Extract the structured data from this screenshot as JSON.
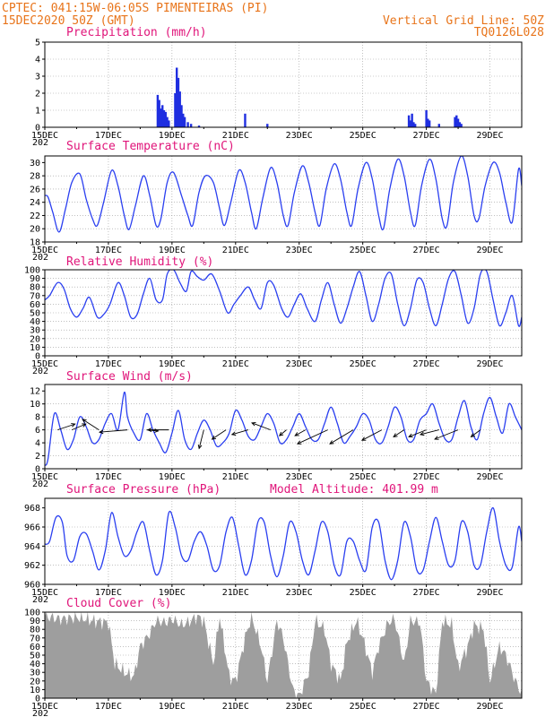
{
  "header": {
    "left_line1": "CPTEC:  041:15W-06:05S  PIMENTEIRAS (PI)",
    "left_line2": "15DEC2020 50Z (GMT)",
    "right_line1": "Vertical Grid Line: 50Z",
    "right_line2": "TQ0126L028"
  },
  "colors": {
    "header": "#e8741a",
    "title": "#e0157a",
    "series": "#2a3ff0",
    "bars": "#1f2ee0",
    "cloud": "#9e9e9e",
    "wind_vector": "#000000"
  },
  "x_axis": {
    "labels": [
      "15DEC",
      "17DEC",
      "19DEC",
      "21DEC",
      "23DEC",
      "25DEC",
      "27DEC",
      "29DEC"
    ],
    "tick_days": [
      0,
      2,
      4,
      6,
      8,
      10,
      12,
      14
    ],
    "start_fragment": "202",
    "range_days": [
      0,
      15
    ]
  },
  "chart_data": [
    {
      "type": "bar",
      "title": "Precipitation (mm/h)",
      "ylim": [
        0,
        5
      ],
      "yticks": [
        0,
        1,
        2,
        3,
        4,
        5
      ],
      "series": [
        {
          "x_days": [
            3.55,
            3.6,
            3.65,
            3.7,
            3.75,
            3.8,
            3.85,
            3.9,
            4.1,
            4.15,
            4.2,
            4.25,
            4.3,
            4.35,
            4.4,
            4.5,
            4.6,
            4.85,
            6.3,
            7.0,
            11.45,
            11.5,
            11.55,
            11.6,
            11.65,
            12.0,
            12.05,
            12.1,
            12.4,
            12.9,
            12.95,
            13.0,
            13.05,
            13.1
          ],
          "values": [
            1.9,
            1.6,
            1.1,
            1.3,
            1.0,
            0.9,
            0.6,
            0.4,
            2.0,
            3.5,
            2.9,
            2.1,
            1.3,
            0.8,
            0.6,
            0.3,
            0.2,
            0.1,
            0.8,
            0.2,
            0.7,
            0.4,
            0.8,
            0.3,
            0.2,
            1.0,
            0.5,
            0.4,
            0.2,
            0.6,
            0.7,
            0.5,
            0.3,
            0.2
          ]
        }
      ]
    },
    {
      "type": "line",
      "title": "Surface Temperature (nC)",
      "ylim": [
        18,
        31
      ],
      "yticks": [
        18,
        20,
        22,
        24,
        26,
        28,
        30
      ],
      "series": [
        {
          "x_days": [
            0,
            0.1,
            0.25,
            0.45,
            0.65,
            0.85,
            1.1,
            1.3,
            1.5,
            1.65,
            1.85,
            2.1,
            2.3,
            2.5,
            2.65,
            2.85,
            3.1,
            3.3,
            3.5,
            3.65,
            3.85,
            4.05,
            4.3,
            4.5,
            4.65,
            4.85,
            5.05,
            5.3,
            5.5,
            5.65,
            5.85,
            6.1,
            6.3,
            6.5,
            6.65,
            6.85,
            7.1,
            7.3,
            7.5,
            7.65,
            7.85,
            8.1,
            8.3,
            8.5,
            8.65,
            8.85,
            9.1,
            9.3,
            9.5,
            9.65,
            9.85,
            10.1,
            10.3,
            10.5,
            10.65,
            10.85,
            11.1,
            11.3,
            11.5,
            11.65,
            11.85,
            12.1,
            12.3,
            12.5,
            12.65,
            12.85,
            13.1,
            13.3,
            13.5,
            13.65,
            13.85,
            14.1,
            14.3,
            14.5,
            14.7,
            14.9,
            15.0
          ],
          "values": [
            25.0,
            24.8,
            22.5,
            19.5,
            23.0,
            27.0,
            28.3,
            24.5,
            21.5,
            20.5,
            24.0,
            28.8,
            26.5,
            22.0,
            19.9,
            23.5,
            28.0,
            25.0,
            20.5,
            21.5,
            27.0,
            28.5,
            25.0,
            22.0,
            20.5,
            25.5,
            28.0,
            27.0,
            23.0,
            20.5,
            24.0,
            28.8,
            27.0,
            22.5,
            20.0,
            24.5,
            29.2,
            27.0,
            22.0,
            20.5,
            25.5,
            29.5,
            27.0,
            22.5,
            20.5,
            26.0,
            29.8,
            27.5,
            22.5,
            20.5,
            26.0,
            30.0,
            27.5,
            22.0,
            20.0,
            26.0,
            30.5,
            28.0,
            22.5,
            20.5,
            26.5,
            30.5,
            27.5,
            21.5,
            20.5,
            27.0,
            31.0,
            28.0,
            22.0,
            21.5,
            26.5,
            30.0,
            28.5,
            24.0,
            21.0,
            29.0,
            26.5
          ]
        }
      ]
    },
    {
      "type": "line",
      "title": "Relative Humidity (%)",
      "ylim": [
        0,
        100
      ],
      "yticks": [
        0,
        10,
        20,
        30,
        40,
        50,
        60,
        70,
        80,
        90,
        100
      ],
      "series": [
        {
          "x_days": [
            0,
            0.15,
            0.4,
            0.6,
            0.8,
            1.0,
            1.2,
            1.4,
            1.65,
            1.85,
            2.05,
            2.3,
            2.5,
            2.7,
            2.9,
            3.1,
            3.3,
            3.5,
            3.7,
            3.85,
            4.05,
            4.25,
            4.45,
            4.6,
            4.8,
            5.0,
            5.25,
            5.5,
            5.75,
            5.95,
            6.15,
            6.4,
            6.6,
            6.8,
            7.0,
            7.2,
            7.45,
            7.65,
            7.85,
            8.05,
            8.25,
            8.5,
            8.7,
            8.9,
            9.1,
            9.3,
            9.5,
            9.7,
            9.9,
            10.1,
            10.3,
            10.5,
            10.7,
            10.9,
            11.1,
            11.3,
            11.5,
            11.7,
            11.9,
            12.1,
            12.3,
            12.5,
            12.7,
            12.9,
            13.1,
            13.3,
            13.5,
            13.7,
            13.9,
            14.1,
            14.3,
            14.5,
            14.7,
            14.9,
            15.0
          ],
          "values": [
            65,
            70,
            85,
            78,
            55,
            45,
            55,
            68,
            45,
            48,
            60,
            85,
            70,
            45,
            48,
            72,
            90,
            65,
            65,
            95,
            100,
            85,
            75,
            98,
            92,
            88,
            95,
            75,
            50,
            60,
            70,
            80,
            65,
            55,
            85,
            82,
            55,
            45,
            60,
            72,
            55,
            40,
            65,
            85,
            60,
            38,
            55,
            80,
            98,
            70,
            40,
            60,
            90,
            95,
            60,
            35,
            55,
            88,
            85,
            55,
            35,
            60,
            90,
            98,
            70,
            38,
            55,
            95,
            98,
            65,
            35,
            50,
            70,
            35,
            45
          ]
        }
      ]
    },
    {
      "type": "line",
      "title": "Surface Wind (m/s)",
      "ylim": [
        0,
        13
      ],
      "yticks": [
        0,
        2,
        4,
        6,
        8,
        10,
        12
      ],
      "series": [
        {
          "x_days": [
            0,
            0.1,
            0.3,
            0.5,
            0.7,
            0.9,
            1.1,
            1.3,
            1.5,
            1.7,
            1.9,
            2.1,
            2.3,
            2.5,
            2.6,
            2.8,
            3.0,
            3.2,
            3.4,
            3.6,
            3.8,
            4.0,
            4.2,
            4.4,
            4.6,
            4.8,
            5.0,
            5.2,
            5.4,
            5.6,
            5.8,
            6.0,
            6.2,
            6.4,
            6.6,
            6.8,
            7.0,
            7.2,
            7.4,
            7.6,
            7.8,
            8.0,
            8.2,
            8.4,
            8.6,
            8.8,
            9.0,
            9.2,
            9.4,
            9.6,
            9.8,
            10.0,
            10.2,
            10.4,
            10.6,
            10.8,
            11.0,
            11.2,
            11.4,
            11.6,
            11.8,
            12.0,
            12.2,
            12.4,
            12.6,
            12.8,
            13.0,
            13.2,
            13.4,
            13.6,
            13.8,
            14.0,
            14.2,
            14.4,
            14.6,
            14.8,
            15.0
          ],
          "values": [
            0.5,
            1.5,
            8.5,
            6.0,
            3.0,
            4.5,
            8.0,
            6.5,
            4.0,
            4.5,
            7.0,
            8.5,
            6.0,
            11.8,
            8.0,
            5.5,
            4.5,
            8.5,
            6.0,
            4.0,
            2.5,
            5.5,
            9.0,
            4.5,
            3.0,
            5.5,
            7.5,
            6.0,
            3.5,
            4.0,
            5.5,
            9.0,
            7.5,
            5.0,
            4.5,
            6.5,
            8.5,
            7.0,
            4.0,
            4.5,
            6.5,
            8.5,
            6.5,
            4.5,
            4.5,
            7.0,
            9.5,
            7.0,
            4.0,
            5.0,
            6.5,
            8.5,
            7.5,
            4.5,
            4.0,
            6.5,
            9.5,
            8.0,
            4.5,
            4.5,
            7.5,
            8.5,
            10.0,
            7.0,
            4.5,
            4.5,
            8.0,
            10.5,
            6.5,
            4.5,
            8.5,
            11.0,
            8.0,
            5.5,
            10.0,
            8.0,
            6.0
          ]
        }
      ],
      "vectors": {
        "x_days": [
          0.4,
          0.85,
          1.7,
          2.6,
          3.2,
          3.9,
          5.0,
          5.7,
          6.4,
          7.1,
          7.6,
          8.2,
          8.9,
          9.7,
          10.6,
          11.3,
          12.0,
          12.4,
          13.0,
          13.7
        ],
        "u": [
          1.5,
          1.2,
          -1.4,
          -2.4,
          1.0,
          -1.8,
          -0.4,
          -1.2,
          -1.4,
          -1.6,
          -0.6,
          -0.9,
          -2.6,
          -2.0,
          -1.7,
          -0.9,
          -1.5,
          -1.6,
          -2.0,
          -0.8
        ],
        "v": [
          0.5,
          0.5,
          0.9,
          -0.2,
          -0.1,
          0.0,
          -1.6,
          -0.8,
          -0.4,
          0.6,
          -0.5,
          -0.5,
          -1.2,
          -1.2,
          -0.9,
          -0.6,
          -0.6,
          -0.4,
          -0.8,
          -0.6
        ]
      }
    },
    {
      "type": "line",
      "title": "Surface Pressure (hPa)",
      "annotation": "Model Altitude: 401.99 m",
      "ylim": [
        960,
        969
      ],
      "yticks": [
        960,
        962,
        964,
        966,
        968
      ],
      "series": [
        {
          "x_days": [
            0,
            0.15,
            0.35,
            0.55,
            0.7,
            0.9,
            1.1,
            1.3,
            1.5,
            1.7,
            1.9,
            2.1,
            2.3,
            2.5,
            2.7,
            2.9,
            3.1,
            3.3,
            3.5,
            3.7,
            3.9,
            4.1,
            4.3,
            4.5,
            4.7,
            4.9,
            5.1,
            5.3,
            5.5,
            5.7,
            5.9,
            6.1,
            6.3,
            6.5,
            6.7,
            6.9,
            7.1,
            7.3,
            7.5,
            7.7,
            7.9,
            8.1,
            8.3,
            8.5,
            8.7,
            8.9,
            9.1,
            9.3,
            9.5,
            9.7,
            9.9,
            10.1,
            10.3,
            10.5,
            10.7,
            10.9,
            11.1,
            11.3,
            11.5,
            11.7,
            11.9,
            12.1,
            12.3,
            12.5,
            12.7,
            12.9,
            13.1,
            13.3,
            13.5,
            13.7,
            13.9,
            14.1,
            14.3,
            14.5,
            14.7,
            14.9,
            15.0
          ],
          "values": [
            964.2,
            964.5,
            967.0,
            966.5,
            963.0,
            962.5,
            965.0,
            965.3,
            963.5,
            961.5,
            963.5,
            967.5,
            965.0,
            963.0,
            963.5,
            965.5,
            966.5,
            963.5,
            961.0,
            962.5,
            967.5,
            966.0,
            963.0,
            962.5,
            964.5,
            965.5,
            964.0,
            961.5,
            962.0,
            965.5,
            967.0,
            964.0,
            961.0,
            962.5,
            966.5,
            966.5,
            963.0,
            960.8,
            963.0,
            966.5,
            965.5,
            962.5,
            961.0,
            963.5,
            966.5,
            965.5,
            962.0,
            961.0,
            964.5,
            964.5,
            962.5,
            961.5,
            966.0,
            966.5,
            962.5,
            960.5,
            962.5,
            966.5,
            965.0,
            961.5,
            961.5,
            964.5,
            967.0,
            964.5,
            962.0,
            962.5,
            966.5,
            965.5,
            962.0,
            962.0,
            965.5,
            968.0,
            964.5,
            962.0,
            961.8,
            966.0,
            964.5
          ]
        }
      ]
    },
    {
      "type": "area",
      "title": "Cloud Cover (%)",
      "ylim": [
        0,
        100
      ],
      "yticks": [
        0,
        10,
        20,
        30,
        40,
        50,
        60,
        70,
        80,
        90,
        100
      ],
      "series": [
        {
          "x_days": [
            0,
            0.5,
            1.0,
            1.5,
            2.0,
            2.2,
            2.5,
            2.8,
            3.0,
            3.3,
            3.5,
            3.8,
            4.0,
            4.3,
            4.5,
            4.8,
            5.0,
            5.3,
            5.5,
            5.8,
            6.0,
            6.3,
            6.5,
            6.8,
            7.0,
            7.3,
            7.5,
            7.8,
            8.0,
            8.3,
            8.5,
            8.8,
            9.0,
            9.3,
            9.5,
            9.8,
            10.0,
            10.3,
            10.5,
            10.8,
            11.0,
            11.3,
            11.5,
            11.8,
            12.0,
            12.3,
            12.5,
            12.8,
            13.0,
            13.3,
            13.5,
            13.8,
            14.0,
            14.3,
            14.5,
            14.8,
            15.0
          ],
          "values": [
            95,
            92,
            94,
            90,
            88,
            40,
            30,
            25,
            60,
            75,
            90,
            88,
            92,
            85,
            88,
            95,
            90,
            40,
            95,
            25,
            20,
            70,
            95,
            60,
            20,
            90,
            70,
            10,
            2,
            30,
            90,
            80,
            40,
            20,
            65,
            90,
            70,
            30,
            60,
            88,
            92,
            40,
            90,
            88,
            20,
            5,
            90,
            85,
            35,
            60,
            85,
            80,
            20,
            60,
            50,
            20,
            5
          ]
        }
      ]
    }
  ]
}
